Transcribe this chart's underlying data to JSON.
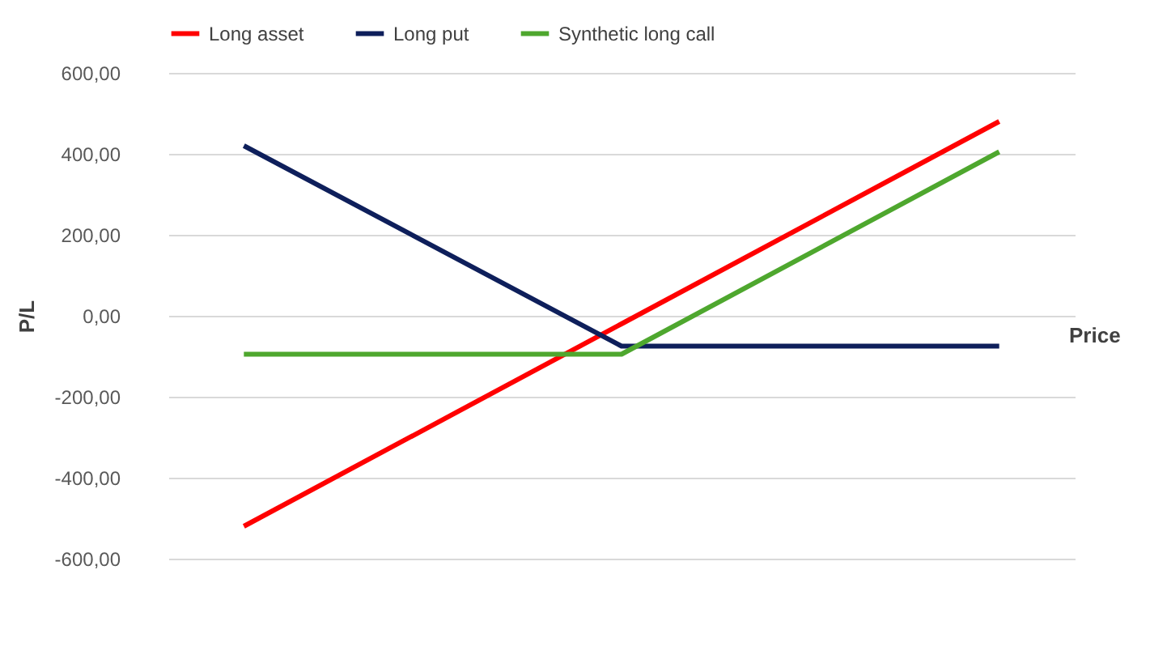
{
  "chart_data": {
    "type": "line",
    "xlabel": "Price",
    "ylabel": "P/L",
    "categories": [
      null,
      null,
      null
    ],
    "series": [
      {
        "name": "Long asset",
        "color": "#ff0000",
        "values": [
          -520,
          -20,
          480
        ]
      },
      {
        "name": "Long put",
        "color": "#0e1f5b",
        "values": [
          420,
          -75,
          -75
        ]
      },
      {
        "name": "Synthetic long call",
        "color": "#4ea72e",
        "values": [
          -95,
          -95,
          405
        ]
      }
    ],
    "ylim": [
      -600,
      600
    ],
    "yticks": [
      {
        "value": -600,
        "label": "-600,00"
      },
      {
        "value": -400,
        "label": "-400,00"
      },
      {
        "value": -200,
        "label": "-200,00"
      },
      {
        "value": 0,
        "label": "0,00"
      },
      {
        "value": 200,
        "label": "200,00"
      },
      {
        "value": 400,
        "label": "400,00"
      },
      {
        "value": 600,
        "label": "600,00"
      }
    ],
    "grid": "y",
    "legend": "top",
    "marker": "none",
    "line_style": "solid"
  }
}
